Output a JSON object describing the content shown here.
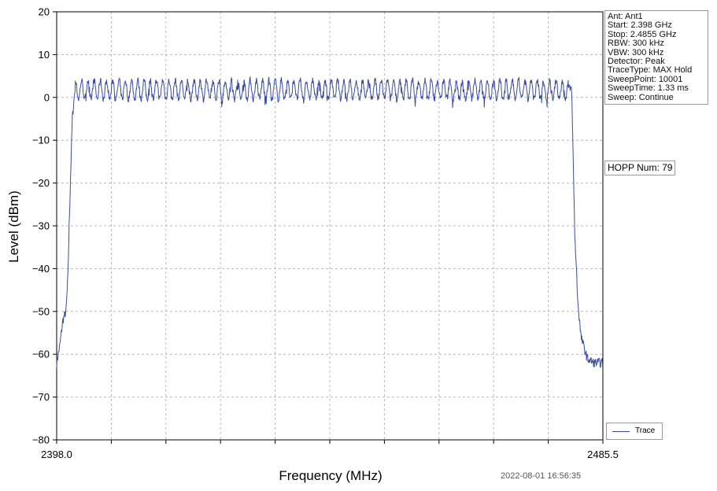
{
  "chart_data": {
    "type": "line",
    "xlabel": "Frequency (MHz)",
    "ylabel": "Level (dBm)",
    "xlim": [
      2398.0,
      2485.5
    ],
    "ylim": [
      -80,
      20
    ],
    "x_tick_labels": [
      "2398.0",
      "2485.5"
    ],
    "y_ticks": [
      20,
      10,
      0,
      -10,
      -20,
      -30,
      -40,
      -50,
      -60,
      -70,
      -80
    ],
    "grid": true,
    "legend_position": "bottom-right",
    "series": [
      {
        "name": "Trace",
        "color": "#3a4ba2",
        "x": [
          2398.0,
          2398.5,
          2399.0,
          2399.5,
          2399.8,
          2400.0,
          2400.5,
          2401.0,
          2401.5,
          2402.0,
          2410.0,
          2420.0,
          2430.0,
          2440.0,
          2450.0,
          2460.0,
          2470.0,
          2479.0,
          2480.0,
          2480.5,
          2481.0,
          2481.5,
          2482.0,
          2483.0,
          2484.0,
          2485.5
        ],
        "y": [
          -62,
          -58,
          -52,
          -50,
          -42,
          -30,
          -5,
          3,
          1,
          2,
          2,
          2,
          2,
          2,
          2,
          2,
          2,
          2,
          2,
          2,
          -32,
          -48,
          -56,
          -61,
          -62,
          -62
        ]
      }
    ]
  },
  "info_panel": [
    "Ant: Ant1",
    "Start: 2.398 GHz",
    "Stop: 2.4855 GHz",
    "RBW: 300 kHz",
    "VBW: 300 kHz",
    "Detector: Peak",
    "TraceType: MAX Hold",
    "SweepPoint: 10001",
    "SweepTime: 1.33 ms",
    "Sweep: Continue"
  ],
  "hopp_label": "HOPP Num: 79",
  "legend": {
    "label": "Trace"
  },
  "timestamp": "2022-08-01 16:56:35"
}
